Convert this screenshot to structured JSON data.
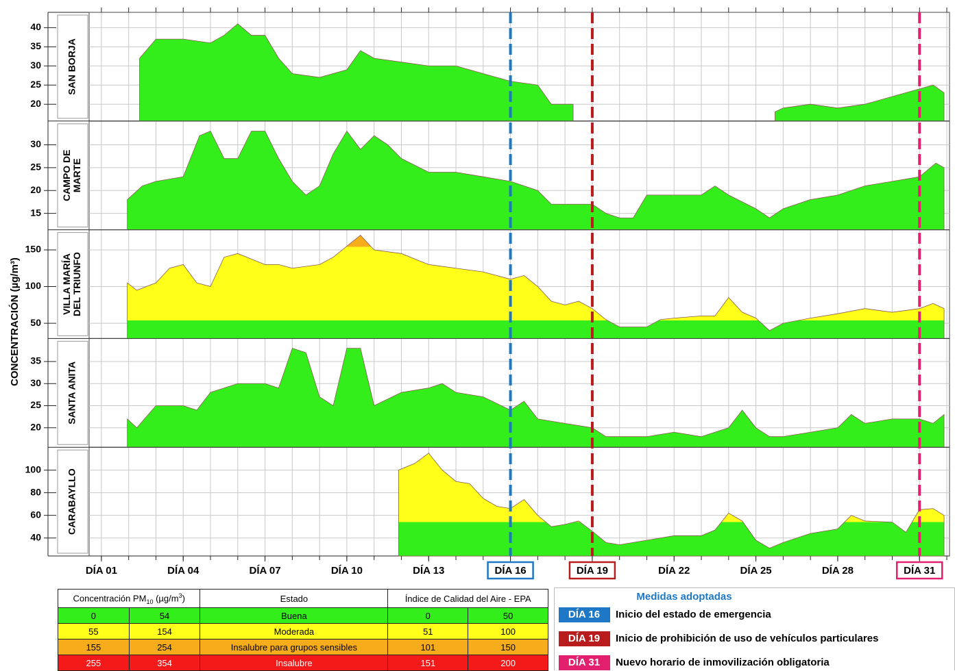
{
  "chart_data": {
    "type": "area",
    "y_label": "CONCENTRACIÓN (µg/m³)",
    "xlim": [
      0.55,
      32.1
    ],
    "xminor_ticks": [
      1,
      2,
      3,
      4,
      5,
      6,
      7,
      8,
      9,
      10,
      11,
      12,
      13,
      14,
      15,
      16,
      17,
      18,
      19,
      20,
      21,
      22,
      23,
      24,
      25,
      26,
      27,
      28,
      29,
      30,
      31,
      32
    ],
    "xticks": [
      {
        "value": 1,
        "label": "DÍA 01"
      },
      {
        "value": 4,
        "label": "DÍA 04"
      },
      {
        "value": 7,
        "label": "DÍA 07"
      },
      {
        "value": 10,
        "label": "DÍA 10"
      },
      {
        "value": 13,
        "label": "DÍA 13"
      },
      {
        "value": 16,
        "label": "DÍA 16"
      },
      {
        "value": 19,
        "label": "DÍA 19"
      },
      {
        "value": 22,
        "label": "DÍA 22"
      },
      {
        "value": 25,
        "label": "DÍA 25"
      },
      {
        "value": 28,
        "label": "DÍA 28"
      },
      {
        "value": 31,
        "label": "DÍA 31"
      }
    ],
    "grid": true,
    "panels": [
      {
        "name": [
          "SAN BORJA"
        ],
        "ylim": [
          15.6,
          44
        ],
        "yticks": [
          20,
          25,
          30,
          35,
          40
        ],
        "x": [
          2.4,
          3,
          4,
          5,
          5.5,
          6,
          6.5,
          7,
          7.5,
          8,
          9,
          10,
          10.5,
          11,
          12,
          13,
          14,
          15,
          16,
          17,
          17.5,
          18.3,
          22,
          25.7,
          26,
          27,
          28,
          29,
          30,
          31,
          31.5,
          31.9
        ],
        "values": [
          32,
          37,
          37,
          36,
          38,
          41,
          38,
          38,
          32,
          28,
          27,
          29,
          34,
          32,
          31,
          30,
          30,
          28,
          26,
          25,
          20,
          20,
          null,
          18,
          19,
          20,
          19,
          20,
          22,
          24,
          25,
          23
        ]
      },
      {
        "name": [
          "CAMPO DE",
          "MARTE"
        ],
        "ylim": [
          11.4,
          35.2
        ],
        "yticks": [
          15,
          20,
          25,
          30
        ],
        "x": [
          1.95,
          2.5,
          3,
          4,
          4.6,
          5,
          5.5,
          6,
          6.5,
          7,
          7.5,
          8,
          8.5,
          9,
          9.5,
          10,
          10.5,
          11,
          11.5,
          12,
          13,
          14,
          15,
          16,
          17,
          17.5,
          18,
          19,
          19.5,
          20,
          20.5,
          21,
          22,
          23,
          23.5,
          24,
          25,
          25.5,
          26,
          27,
          28,
          29,
          30,
          31,
          31.6,
          31.9
        ],
        "values": [
          18,
          21,
          22,
          23,
          32,
          33,
          27,
          27,
          33,
          33,
          27,
          22,
          19,
          21,
          28,
          33,
          29,
          32,
          30,
          27,
          24,
          24,
          23,
          22,
          20,
          17,
          17,
          17,
          15,
          14,
          14,
          19,
          19,
          19,
          21,
          19,
          16,
          14,
          16,
          18,
          19,
          21,
          22,
          23,
          26,
          25
        ]
      },
      {
        "name": [
          "VILLA MARÍA",
          "DEL TRIUNFO"
        ],
        "ylim": [
          29.2,
          177.4
        ],
        "yticks": [
          50,
          100,
          150
        ],
        "x": [
          1.95,
          2.3,
          3,
          3.5,
          4,
          4.5,
          5,
          5.5,
          6,
          7,
          7.5,
          8,
          9,
          9.5,
          10,
          10.5,
          11,
          12,
          13,
          14,
          15,
          16,
          16.5,
          17,
          17.5,
          18,
          18.5,
          19,
          19.5,
          20,
          21,
          21.5,
          22,
          23,
          23.5,
          24,
          24.5,
          25,
          25.5,
          26,
          27,
          28,
          29,
          30,
          31,
          31.5,
          31.9
        ],
        "values": [
          105,
          95,
          105,
          125,
          130,
          105,
          100,
          140,
          145,
          130,
          130,
          125,
          130,
          140,
          155,
          170,
          150,
          145,
          130,
          125,
          120,
          110,
          115,
          100,
          80,
          75,
          80,
          70,
          55,
          45,
          45,
          55,
          57,
          60,
          60,
          85,
          65,
          57,
          40,
          50,
          57,
          63,
          70,
          65,
          70,
          77,
          70
        ]
      },
      {
        "name": [
          "SANTA ANITA"
        ],
        "ylim": [
          15.6,
          40.2
        ],
        "yticks": [
          20,
          25,
          30,
          35
        ],
        "x": [
          1.95,
          2.3,
          3,
          4,
          4.5,
          5,
          6,
          7,
          7.5,
          8,
          8.5,
          9,
          9.5,
          10,
          10.5,
          11,
          12,
          13,
          13.5,
          14,
          15,
          16,
          16.5,
          17,
          18,
          19,
          19.5,
          20,
          21,
          22,
          23,
          24,
          24.5,
          25,
          25.5,
          26,
          27,
          28,
          28.5,
          29,
          30,
          31,
          31.5,
          31.9
        ],
        "values": [
          22,
          20,
          25,
          25,
          24,
          28,
          30,
          30,
          29,
          38,
          37,
          27,
          25,
          38,
          38,
          25,
          28,
          29,
          30,
          28,
          27,
          24,
          26,
          22,
          21,
          20,
          18,
          18,
          18,
          19,
          18,
          20,
          24,
          20,
          18,
          18,
          19,
          20,
          23,
          21,
          22,
          22,
          21,
          23
        ]
      },
      {
        "name": [
          "CARABAYLLO"
        ],
        "ylim": [
          24.1,
          120.2
        ],
        "yticks": [
          40,
          60,
          80,
          100
        ],
        "x": [
          11.9,
          12.5,
          13,
          13.5,
          14,
          14.5,
          15,
          15.5,
          16,
          16.5,
          17,
          17.5,
          18,
          18.5,
          19,
          19.5,
          20,
          21,
          22,
          23,
          23.5,
          24,
          24.5,
          25,
          25.5,
          26,
          27,
          28,
          28.5,
          29,
          30,
          30.5,
          31,
          31.5,
          31.9
        ],
        "values": [
          100,
          106,
          115,
          100,
          90,
          88,
          75,
          68,
          66,
          74,
          60,
          50,
          52,
          55,
          46,
          36,
          34,
          38,
          42,
          42,
          47,
          62,
          55,
          38,
          31,
          36,
          44,
          48,
          60,
          55,
          54,
          45,
          65,
          66,
          60
        ]
      }
    ],
    "events": [
      {
        "day": 16,
        "color": "#1e78c6",
        "text": "Inicio del estado de emergencia"
      },
      {
        "day": 19,
        "color": "#b81c1c",
        "text": "Inicio de prohibición de uso de vehículos particulares"
      },
      {
        "day": 31,
        "color": "#e2206e",
        "text": "Nuevo horario de inmovilización obligatoria"
      }
    ],
    "events_title": "Medidas adoptadas",
    "legend_table": {
      "headers": [
        [
          "Concentración PM",
          "10",
          " (µg/m",
          "3",
          ")"
        ],
        "Estado",
        "Índice de Calidad del Aire - EPA"
      ],
      "rows": [
        {
          "cells": [
            0,
            54,
            "Buena",
            0,
            50
          ],
          "color": "#33ee1a",
          "text_color": "#000000"
        },
        {
          "cells": [
            55,
            154,
            "Moderada",
            51,
            100
          ],
          "color": "#ffff1a",
          "text_color": "#000000"
        },
        {
          "cells": [
            155,
            254,
            "Insalubre para grupos sensibles",
            101,
            150
          ],
          "color": "#f7ac1c",
          "text_color": "#000000"
        },
        {
          "cells": [
            255,
            354,
            "Insalubre",
            151,
            200
          ],
          "color": "#f41a1a",
          "text_color": "#ffffff"
        }
      ]
    }
  }
}
